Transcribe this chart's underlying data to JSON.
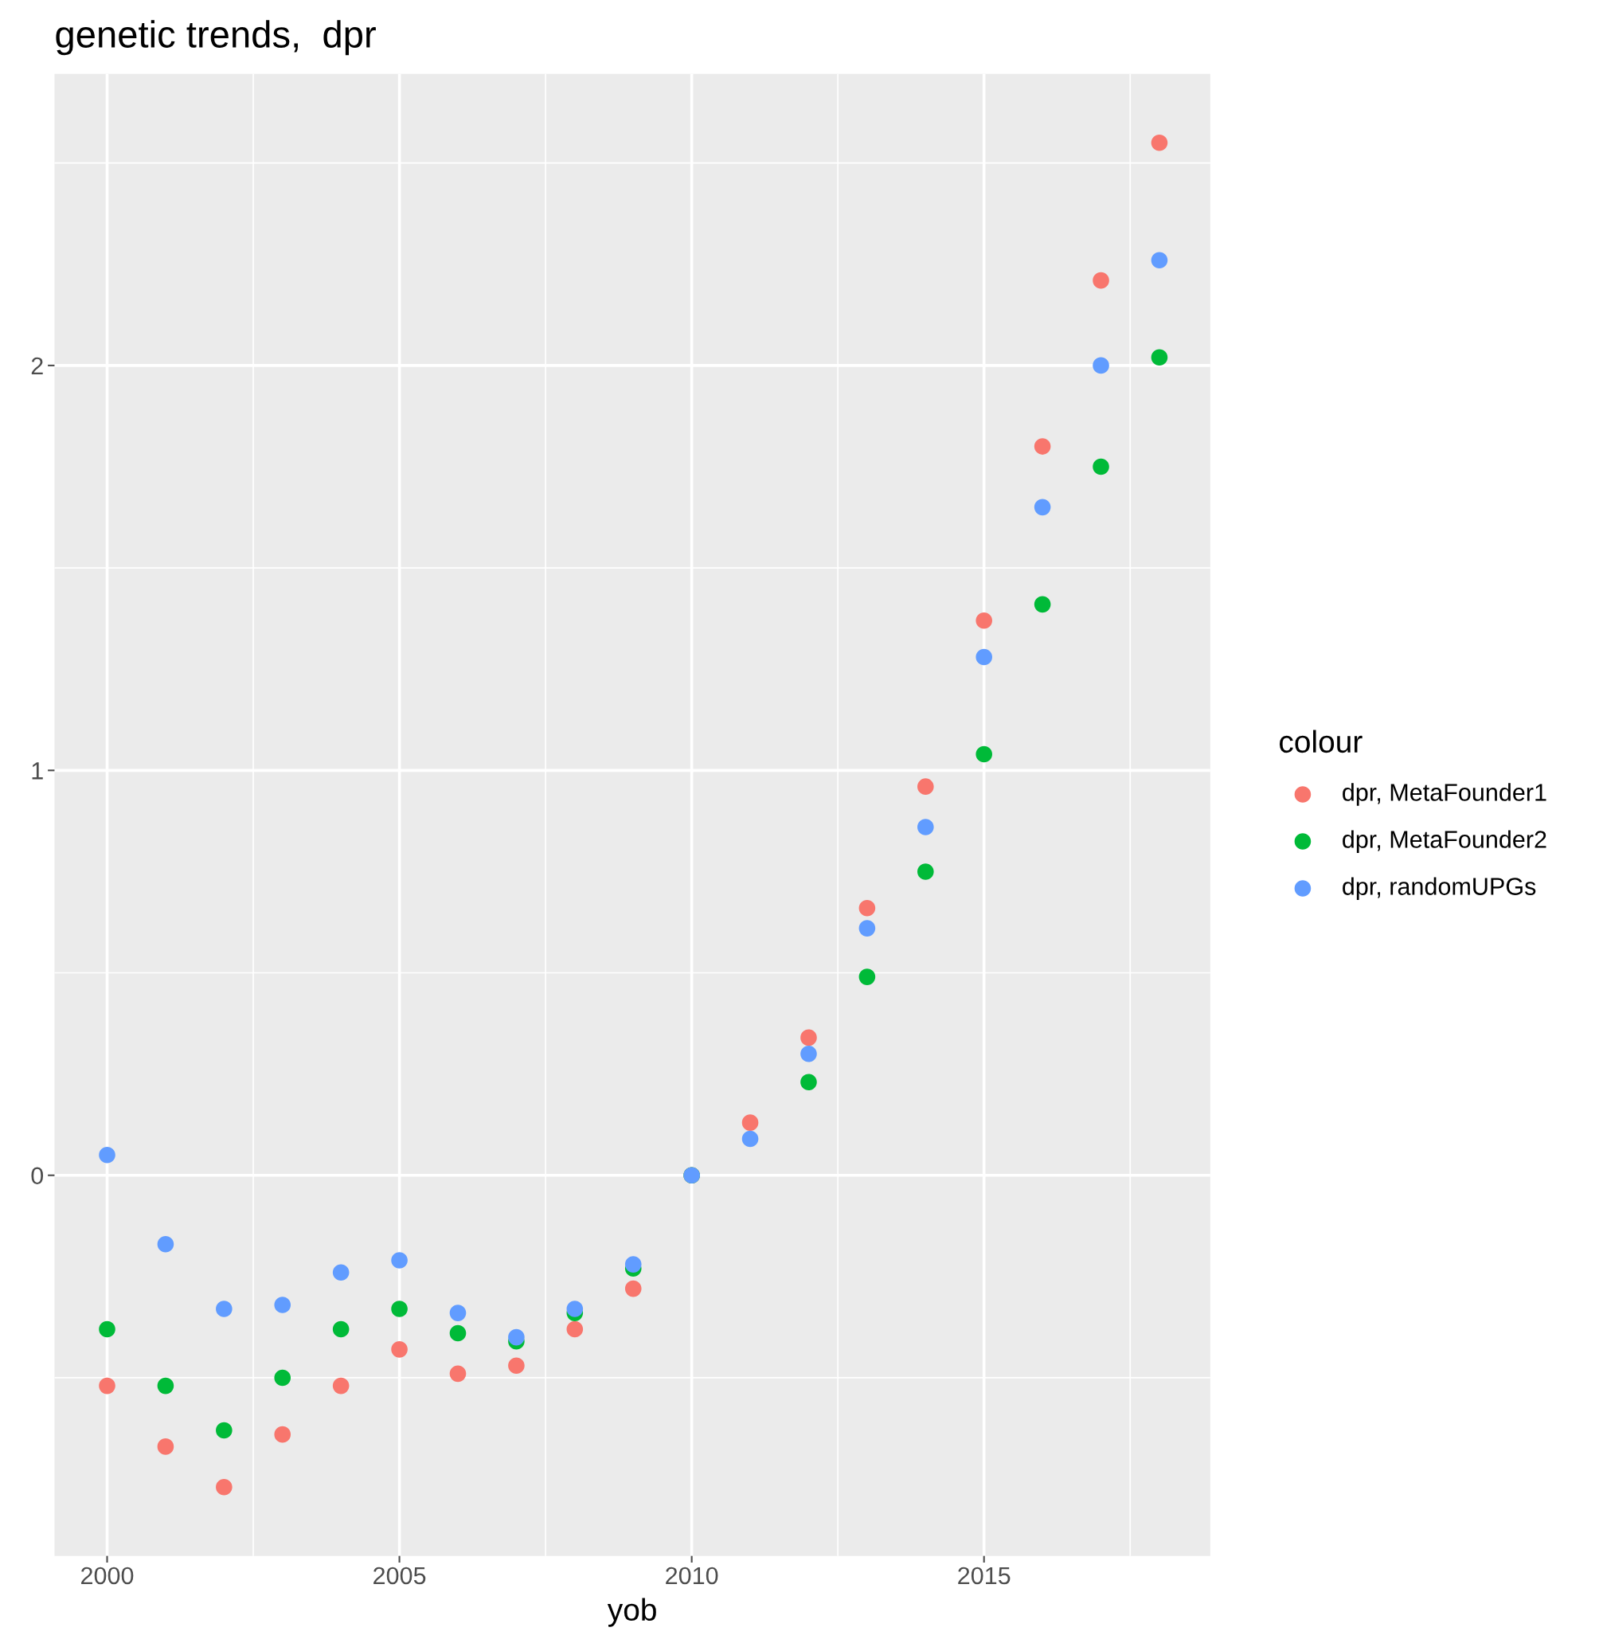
{
  "chart_data": {
    "type": "scatter",
    "title": "genetic trends,  dpr",
    "xlabel": "yob",
    "legend_title": "colour",
    "legend": "right",
    "grid": true,
    "marker": "circle",
    "x": [
      2000,
      2001,
      2002,
      2003,
      2004,
      2005,
      2006,
      2007,
      2008,
      2009,
      2010,
      2011,
      2012,
      2013,
      2014,
      2015,
      2016,
      2017,
      2018
    ],
    "series": [
      {
        "name": "dpr, MetaFounder1",
        "color": "#f8766d",
        "values": [
          -0.52,
          -0.67,
          -0.77,
          -0.64,
          -0.52,
          -0.43,
          -0.49,
          -0.47,
          -0.38,
          -0.28,
          0,
          0.13,
          0.34,
          0.66,
          0.96,
          1.37,
          1.8,
          2.21,
          2.55
        ]
      },
      {
        "name": "dpr, MetaFounder2",
        "color": "#00ba38",
        "values": [
          -0.38,
          -0.52,
          -0.63,
          -0.5,
          -0.38,
          -0.33,
          -0.39,
          -0.41,
          -0.34,
          -0.23,
          0,
          null,
          0.23,
          0.49,
          0.75,
          1.04,
          1.41,
          1.75,
          2.02
        ]
      },
      {
        "name": "dpr, randomUPGs",
        "color": "#619cff",
        "values": [
          0.05,
          -0.17,
          -0.33,
          -0.32,
          -0.24,
          -0.21,
          -0.34,
          -0.4,
          -0.33,
          -0.22,
          0,
          0.09,
          0.3,
          0.61,
          0.86,
          1.28,
          1.65,
          2.0,
          2.26
        ]
      }
    ],
    "xlim": [
      1999.1,
      2018.87
    ],
    "ylim": [
      -0.94,
      2.72
    ],
    "xticks": [
      2000,
      2005,
      2010,
      2015
    ],
    "yticks": [
      0,
      1,
      2
    ]
  }
}
